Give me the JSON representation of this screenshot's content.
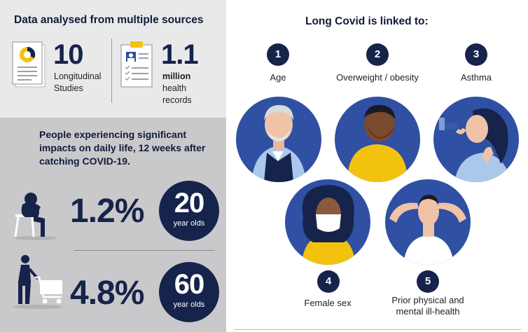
{
  "sources": {
    "heading": "Data analysed from multiple sources",
    "studies": {
      "number": "10",
      "line1": "Longitudinal",
      "line2": "Studies"
    },
    "records": {
      "number": "1.1",
      "line1": "million",
      "line2": "health",
      "line3": "records"
    }
  },
  "impacts": {
    "heading": "People experiencing significant impacts on daily life, 12 weeks after catching COVID-19.",
    "rows": [
      {
        "percent": "1.2%",
        "age": "20",
        "age_unit": "year olds"
      },
      {
        "percent": "4.8%",
        "age": "60",
        "age_unit": "year olds"
      }
    ]
  },
  "long_covid": {
    "heading": "Long Covid is linked to:",
    "factors": [
      {
        "num": "1",
        "label": "Age"
      },
      {
        "num": "2",
        "label": "Overweight / obesity"
      },
      {
        "num": "3",
        "label": "Asthma"
      },
      {
        "num": "4",
        "label": "Female sex"
      },
      {
        "num": "5",
        "label_line1": "Prior physical and",
        "label_line2": "mental ill-health"
      }
    ]
  },
  "colors": {
    "navy": "#16234b",
    "portrait_blue": "#2f50a3",
    "yellow": "#f3c20f",
    "panel_light": "#e9e9ea",
    "panel_dark": "#c9c9cb"
  }
}
